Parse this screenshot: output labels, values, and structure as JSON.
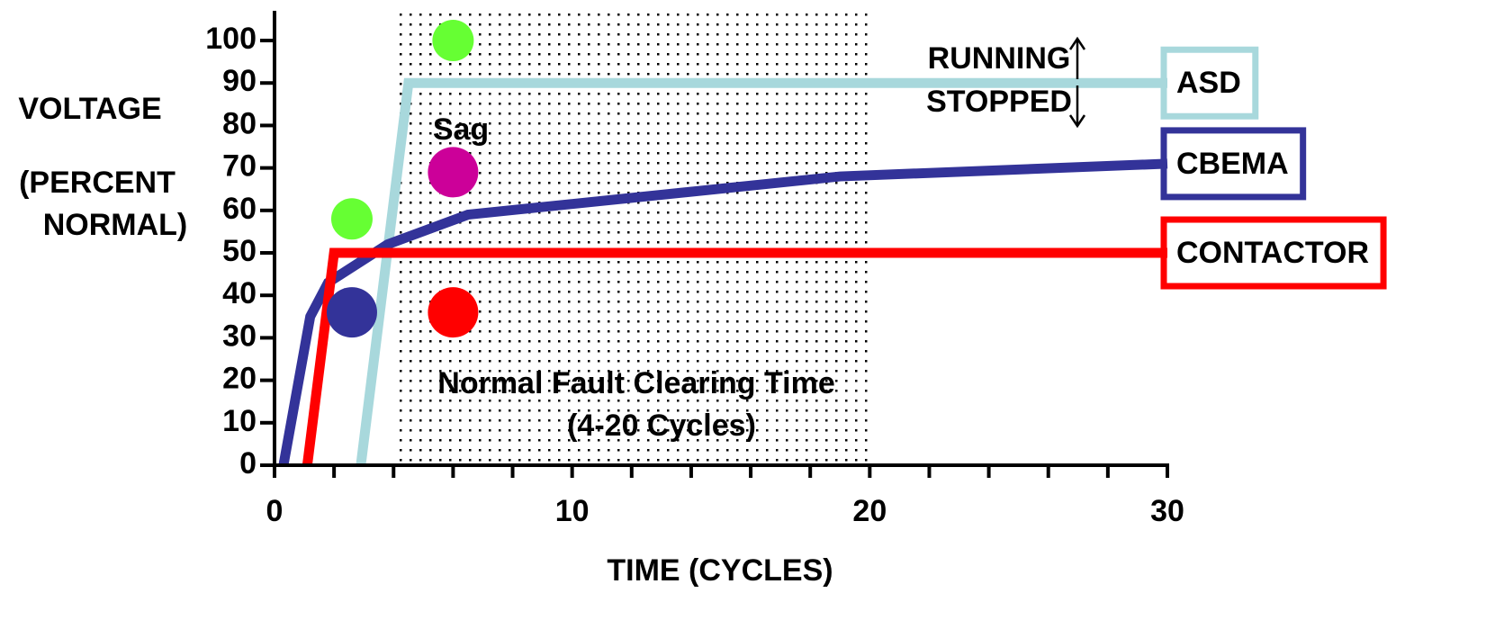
{
  "chart_data": {
    "type": "line",
    "xlabel": "TIME (CYCLES)",
    "ylabel": [
      "VOLTAGE",
      "(PERCENT",
      "NORMAL)"
    ],
    "xlim": [
      0,
      30
    ],
    "ylim": [
      0,
      107
    ],
    "xticks": [
      0,
      10,
      20,
      30
    ],
    "x_minor_ticks": [
      2,
      4,
      6,
      8,
      12,
      14,
      16,
      18,
      22,
      24,
      26,
      28
    ],
    "yticks": [
      0,
      10,
      20,
      30,
      40,
      50,
      60,
      70,
      80,
      90,
      100
    ],
    "shaded_region": {
      "x": [
        4,
        20
      ],
      "labels": [
        "Normal Fault Clearing Time",
        "(4-20 Cycles)"
      ]
    },
    "series": [
      {
        "name": "ASD",
        "color": "#a8d8dc",
        "x": [
          2.9,
          4.5,
          30
        ],
        "y": [
          0,
          90,
          90
        ]
      },
      {
        "name": "CBEMA",
        "color": "#333399",
        "x": [
          0.3,
          1.2,
          1.8,
          3.8,
          6.5,
          19,
          30
        ],
        "y": [
          0,
          35,
          43,
          52,
          59,
          68,
          71
        ]
      },
      {
        "name": "CONTACTOR",
        "color": "#ff0000",
        "x": [
          1.1,
          2,
          30
        ],
        "y": [
          0,
          50,
          50
        ]
      }
    ],
    "points": [
      {
        "x": 2.6,
        "y": 58,
        "color": "#66ff33"
      },
      {
        "x": 2.6,
        "y": 36,
        "color": "#333399"
      },
      {
        "x": 6,
        "y": 100,
        "color": "#66ff33"
      },
      {
        "x": 6,
        "y": 69,
        "color": "#cc0099"
      },
      {
        "x": 6,
        "y": 36,
        "color": "#ff0000"
      }
    ],
    "annotations": {
      "running": "RUNNING",
      "stopped": "STOPPED",
      "sag": "Sag"
    }
  }
}
